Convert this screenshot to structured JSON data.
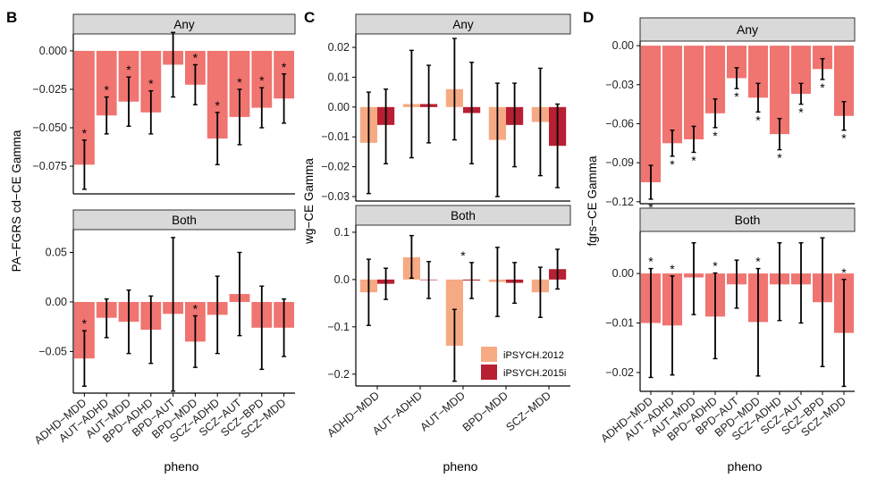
{
  "colors": {
    "bar": "#f07470",
    "light": "#f6aa84",
    "dark": "#b81f33",
    "strip": "#d9d9d9",
    "err": "#000000"
  },
  "chart_data": [
    {
      "panel_letter": "B",
      "type": "bar",
      "ylabel": "PA−FGRS cd−CE Gamma",
      "xlabel": "pheno",
      "categories": [
        "ADHD−MDD",
        "AUT−ADHD",
        "AUT−MDD",
        "BPD−ADHD",
        "BPD−AUT",
        "BPD−MDD",
        "SCZ−ADHD",
        "SCZ−AUT",
        "SCZ−BPD",
        "SCZ−MDD"
      ],
      "facets": [
        {
          "strip": "Any",
          "ylim": [
            -0.093,
            0.011
          ],
          "ticks": [
            0,
            -0.025,
            -0.05,
            -0.075
          ],
          "tick_labels": [
            "0.000",
            "−0.025",
            "−0.050",
            "−0.075"
          ],
          "series": [
            {
              "name": "pa-fgrs",
              "values": [
                -0.074,
                -0.042,
                -0.033,
                -0.04,
                -0.009,
                -0.022,
                -0.057,
                -0.043,
                -0.037,
                -0.031
              ],
              "lower": [
                -0.09,
                -0.054,
                -0.049,
                -0.054,
                -0.03,
                -0.035,
                -0.074,
                -0.061,
                -0.05,
                -0.047
              ],
              "upper": [
                -0.058,
                -0.03,
                -0.017,
                -0.026,
                0.012,
                -0.009,
                -0.04,
                -0.025,
                -0.024,
                -0.015
              ]
            }
          ],
          "stars": [
            "*",
            "*",
            "*",
            "*",
            "",
            "*",
            "*",
            "*",
            "*",
            "*"
          ]
        },
        {
          "strip": "Both",
          "ylim": [
            -0.092,
            0.073
          ],
          "ticks": [
            0.05,
            0,
            -0.05
          ],
          "tick_labels": [
            "0.05",
            "0.00",
            "−0.05"
          ],
          "series": [
            {
              "name": "pa-fgrs",
              "values": [
                -0.057,
                -0.016,
                -0.02,
                -0.028,
                -0.012,
                -0.04,
                -0.013,
                0.008,
                -0.026,
                -0.026
              ],
              "lower": [
                -0.085,
                -0.036,
                -0.052,
                -0.062,
                -0.09,
                -0.066,
                -0.052,
                -0.034,
                -0.068,
                -0.055
              ],
              "upper": [
                -0.029,
                0.003,
                0.012,
                0.006,
                0.065,
                -0.014,
                0.026,
                0.05,
                0.016,
                0.003
              ]
            }
          ],
          "stars": [
            "*",
            "",
            "",
            "",
            "",
            "*",
            "",
            "",
            "",
            ""
          ]
        }
      ]
    },
    {
      "panel_letter": "C",
      "type": "bar",
      "ylabel": "wg−CE Gamma",
      "xlabel": "pheno",
      "categories": [
        "ADHD−MDD",
        "AUT−ADHD",
        "AUT−MDD",
        "BPD−MDD",
        "SCZ−MDD"
      ],
      "legend": {
        "placement": "bottom-right",
        "entries": [
          "iPSYCH.2012",
          "iPSYCH.2015i"
        ]
      },
      "facets": [
        {
          "strip": "Any",
          "ylim": [
            -0.0315,
            0.0245
          ],
          "ticks": [
            0.02,
            0.01,
            0,
            -0.01,
            -0.02,
            -0.03
          ],
          "tick_labels": [
            "0.02",
            "0.01",
            "0.00",
            "−0.01",
            "−0.02",
            "−0.03"
          ],
          "series": [
            {
              "name": "iPSYCH.2012",
              "values": [
                -0.012,
                0.001,
                0.006,
                -0.011,
                -0.005
              ],
              "lower": [
                -0.029,
                -0.017,
                -0.011,
                -0.03,
                -0.023
              ],
              "upper": [
                0.005,
                0.019,
                0.023,
                0.008,
                0.013
              ]
            },
            {
              "name": "iPSYCH.2015i",
              "values": [
                -0.006,
                0.001,
                -0.002,
                -0.006,
                -0.013
              ],
              "lower": [
                -0.019,
                -0.012,
                -0.019,
                -0.02,
                -0.027
              ],
              "upper": [
                0.006,
                0.014,
                0.015,
                0.008,
                0.001
              ]
            }
          ],
          "stars": []
        },
        {
          "strip": "Both",
          "ylim": [
            -0.225,
            0.115
          ],
          "ticks": [
            0.1,
            0,
            -0.1,
            -0.2
          ],
          "tick_labels": [
            "0.1",
            "0.0",
            "−0.1",
            "−0.2"
          ],
          "series": [
            {
              "name": "iPSYCH.2012",
              "values": [
                -0.027,
                0.047,
                -0.14,
                -0.005,
                -0.027
              ],
              "lower": [
                -0.097,
                0.003,
                -0.215,
                -0.078,
                -0.08
              ],
              "upper": [
                0.043,
                0.093,
                -0.063,
                0.068,
                0.026
              ]
            },
            {
              "name": "iPSYCH.2015i",
              "values": [
                -0.009,
                -0.001,
                -0.002,
                -0.007,
                0.022
              ],
              "lower": [
                -0.042,
                -0.04,
                -0.04,
                -0.05,
                -0.02
              ],
              "upper": [
                0.024,
                0.038,
                0.036,
                0.036,
                0.064
              ]
            }
          ],
          "stars": [
            "",
            "",
            "*",
            "",
            ""
          ]
        }
      ]
    },
    {
      "panel_letter": "D",
      "type": "bar",
      "ylabel": "fgrs−CE Gamma",
      "xlabel": "pheno",
      "categories": [
        "ADHD−MDD",
        "AUT−ADHD",
        "AUT−MDD",
        "BPD−ADHD",
        "BPD−AUT",
        "BPD−MDD",
        "SCZ−ADHD",
        "SCZ−AUT",
        "SCZ−BPD",
        "SCZ−MDD"
      ],
      "facets": [
        {
          "strip": "Any",
          "ylim": [
            -0.1215,
            0.0035
          ],
          "ticks": [
            0,
            -0.03,
            -0.06,
            -0.09,
            -0.12
          ],
          "tick_labels": [
            "0.00",
            "−0.03",
            "−0.06",
            "−0.09",
            "−0.12"
          ],
          "series": [
            {
              "name": "fgrs",
              "values": [
                -0.105,
                -0.075,
                -0.072,
                -0.052,
                -0.025,
                -0.04,
                -0.068,
                -0.037,
                -0.018,
                -0.054
              ],
              "lower": [
                -0.118,
                -0.085,
                -0.082,
                -0.063,
                -0.033,
                -0.051,
                -0.08,
                -0.045,
                -0.026,
                -0.065
              ],
              "upper": [
                -0.092,
                -0.065,
                -0.062,
                -0.041,
                -0.017,
                -0.029,
                -0.056,
                -0.029,
                -0.01,
                -0.043
              ]
            }
          ],
          "stars": [
            "*",
            "*",
            "*",
            "*",
            "*",
            "*",
            "*",
            "*",
            "*",
            "*"
          ]
        },
        {
          "strip": "Both",
          "ylim": [
            -0.0238,
            0.0085
          ],
          "ticks": [
            0,
            -0.01,
            -0.02
          ],
          "tick_labels": [
            "0.00",
            "−0.01",
            "−0.02"
          ],
          "series": [
            {
              "name": "fgrs",
              "values": [
                -0.01,
                -0.0105,
                -0.0008,
                -0.0087,
                -0.0022,
                -0.0098,
                -0.0022,
                -0.0022,
                -0.0058,
                -0.012
              ],
              "lower": [
                -0.021,
                -0.0205,
                -0.0083,
                -0.0172,
                -0.007,
                -0.0207,
                -0.0095,
                -0.01,
                -0.0188,
                -0.0228
              ],
              "upper": [
                0.001,
                -0.0005,
                0.0062,
                0.0001,
                0.0027,
                0.001,
                0.0062,
                0.0062,
                0.0072,
                -0.0012
              ]
            }
          ],
          "stars": [
            "*",
            "*",
            "",
            "*",
            "",
            "*",
            "",
            "",
            "",
            "*"
          ]
        }
      ]
    }
  ]
}
